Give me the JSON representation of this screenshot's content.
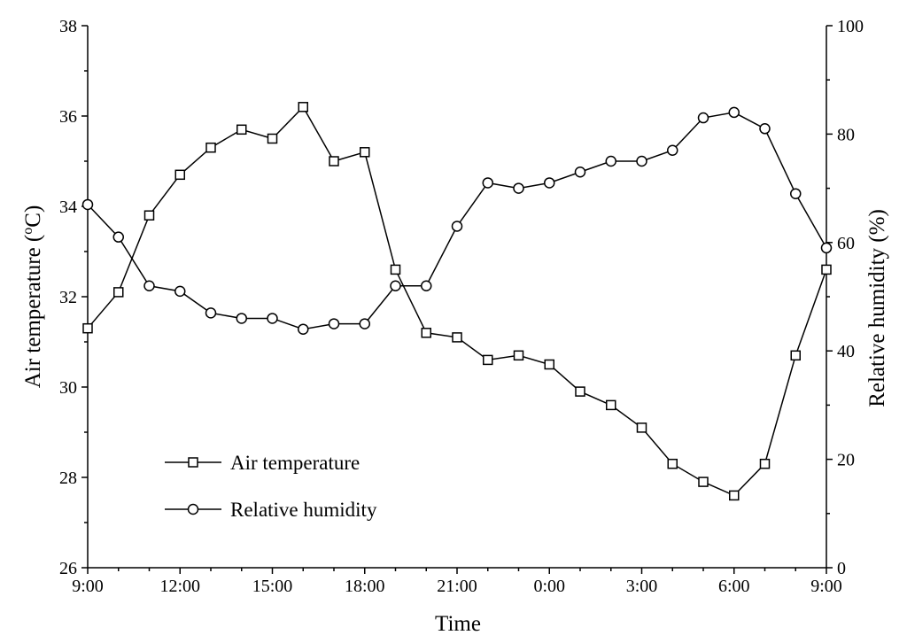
{
  "chart_data": {
    "type": "line",
    "x": [
      "9:00",
      "10:00",
      "11:00",
      "12:00",
      "13:00",
      "14:00",
      "15:00",
      "16:00",
      "17:00",
      "18:00",
      "19:00",
      "20:00",
      "21:00",
      "22:00",
      "23:00",
      "0:00",
      "1:00",
      "2:00",
      "3:00",
      "4:00",
      "5:00",
      "6:00",
      "7:00",
      "8:00",
      "9:00"
    ],
    "x_tick_labels": [
      "9:00",
      "12:00",
      "15:00",
      "18:00",
      "21:00",
      "0:00",
      "3:00",
      "6:00",
      "9:00"
    ],
    "xlabel": "Time",
    "ylabel_left_prefix": "Air temperature (",
    "ylabel_left_sup": "o",
    "ylabel_left_suffix": "C)",
    "ylabel_right": "Relative humidity (%)",
    "ylim_left": [
      26,
      38
    ],
    "y_left_ticks": [
      26,
      28,
      30,
      32,
      34,
      36,
      38
    ],
    "ylim_right": [
      0,
      100
    ],
    "y_right_ticks": [
      0,
      20,
      40,
      60,
      80,
      100
    ],
    "grid": false,
    "legend_position": "bottom-left",
    "series": [
      {
        "name": "Air temperature",
        "axis": "left",
        "marker": "square",
        "values": [
          31.3,
          32.1,
          33.8,
          34.7,
          35.3,
          35.7,
          35.5,
          36.2,
          35.0,
          35.2,
          32.6,
          31.2,
          31.1,
          30.6,
          30.7,
          30.5,
          29.9,
          29.6,
          29.1,
          28.3,
          27.9,
          27.6,
          28.3,
          30.7,
          32.6
        ]
      },
      {
        "name": "Relative humidity",
        "axis": "right",
        "marker": "circle",
        "values": [
          67,
          61,
          52,
          51,
          47,
          46,
          46,
          44,
          45,
          45,
          52,
          52,
          63,
          71,
          70,
          71,
          73,
          75,
          75,
          77,
          83,
          84,
          81,
          69,
          59
        ]
      }
    ]
  }
}
